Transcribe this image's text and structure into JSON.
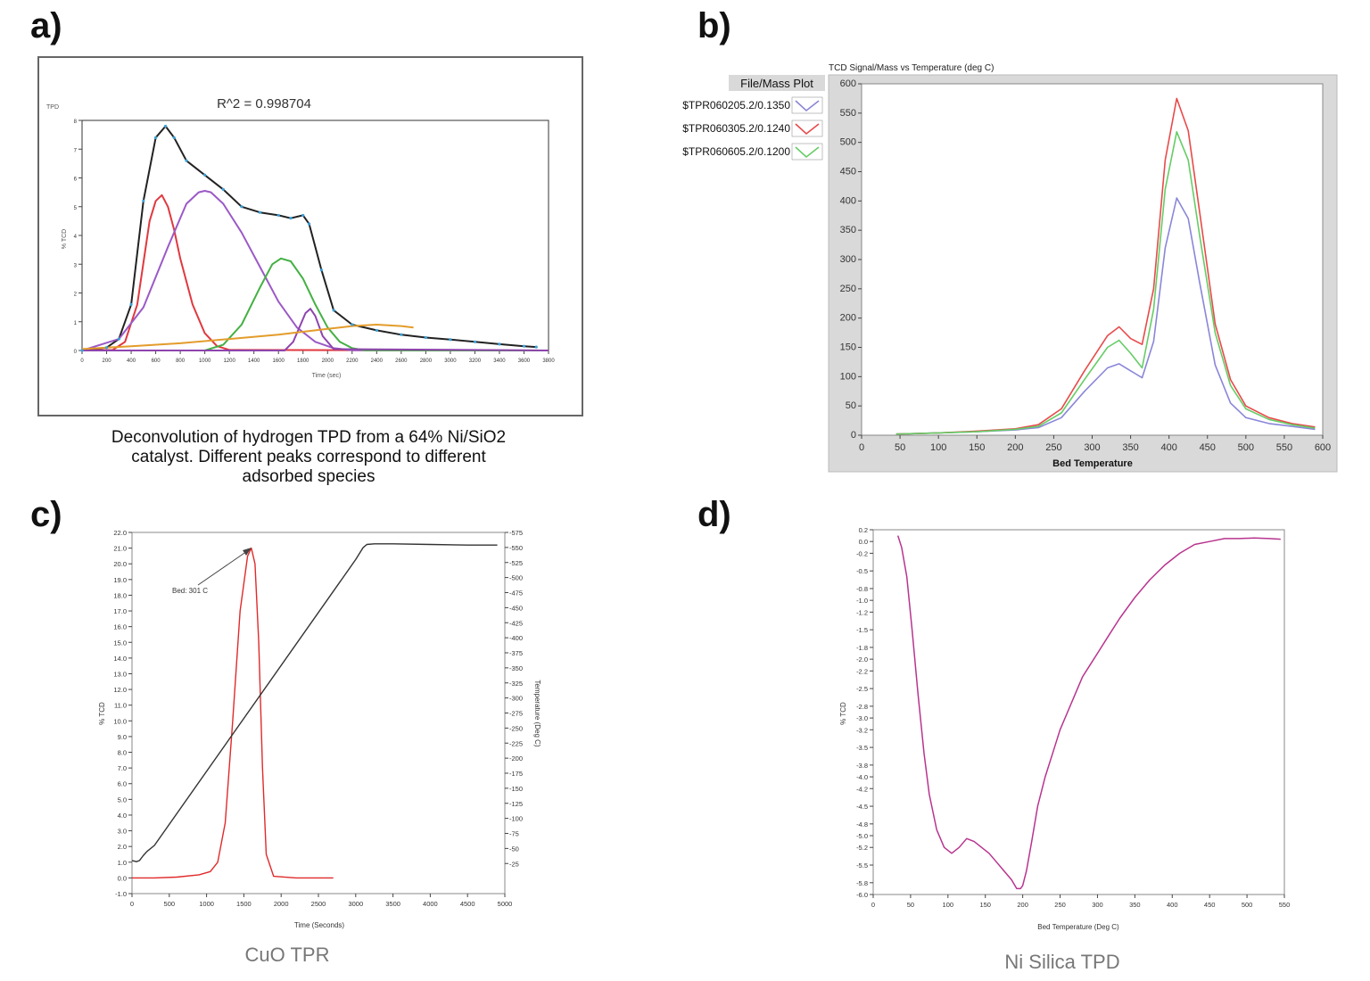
{
  "panels": {
    "a": {
      "label": "a)"
    },
    "b": {
      "label": "b)"
    },
    "c": {
      "label": "c)"
    },
    "d": {
      "label": "d)"
    }
  },
  "colors": {
    "a_fit": "#222222",
    "a_raw": "#3aa0d8",
    "a_red": "#e0383f",
    "a_purple": "#9b59c6",
    "a_green": "#44b044",
    "a_purple2": "#8e44ad",
    "a_orange": "#e39c2b",
    "b_blue": "#8a86d8",
    "b_red": "#e84a4a",
    "b_green": "#66cc66",
    "c_red": "#e02a2a",
    "c_black": "#333333",
    "d_magenta": "#b8348f"
  },
  "chart_data": [
    {
      "panel": "a",
      "type": "line",
      "title": "R^2 = 0.998704",
      "top_left_label": "TPD",
      "xlabel": "Time (sec)",
      "ylabel": "% TCD",
      "caption": [
        "Deconvolution of hydrogen TPD from a 64% Ni/SiO2",
        "catalyst.  Different peaks correspond to different",
        "adsorbed species"
      ],
      "xlim": [
        0,
        3800
      ],
      "ylim": [
        0,
        8
      ],
      "x_ticks": [
        "0",
        "200",
        "400",
        "600",
        "800",
        "1000",
        "1200",
        "1400",
        "1600",
        "1800",
        "2000",
        "2200",
        "2400",
        "2600",
        "2800",
        "3000",
        "3200",
        "3400",
        "3600",
        "3800"
      ],
      "y_ticks": [
        "0",
        "1",
        "2",
        "3",
        "4",
        "5",
        "6",
        "7",
        "8"
      ],
      "series": [
        {
          "color_key": "a_fit",
          "x": [
            0,
            200,
            300,
            400,
            500,
            600,
            680,
            750,
            850,
            1000,
            1150,
            1300,
            1450,
            1600,
            1700,
            1800,
            1850,
            1950,
            2050,
            2200,
            2400,
            2600,
            2800,
            3000,
            3200,
            3400,
            3600,
            3700
          ],
          "y": [
            0.0,
            0.1,
            0.4,
            1.6,
            5.2,
            7.4,
            7.8,
            7.4,
            6.6,
            6.1,
            5.6,
            5.0,
            4.8,
            4.7,
            4.6,
            4.7,
            4.4,
            2.8,
            1.4,
            0.9,
            0.7,
            0.55,
            0.45,
            0.38,
            0.3,
            0.22,
            0.15,
            0.12
          ]
        },
        {
          "color_key": "a_red",
          "x": [
            0,
            250,
            350,
            450,
            550,
            600,
            650,
            700,
            750,
            800,
            900,
            1000,
            1100,
            1200,
            3800
          ],
          "y": [
            0,
            0.02,
            0.3,
            1.6,
            4.5,
            5.2,
            5.4,
            5.0,
            4.2,
            3.2,
            1.6,
            0.6,
            0.15,
            0.02,
            0
          ]
        },
        {
          "color_key": "a_purple",
          "x": [
            0,
            300,
            500,
            700,
            850,
            950,
            1000,
            1050,
            1150,
            1300,
            1450,
            1600,
            1750,
            1900,
            2050,
            2200,
            3800
          ],
          "y": [
            0,
            0.4,
            1.5,
            3.6,
            5.1,
            5.5,
            5.55,
            5.5,
            5.1,
            4.1,
            2.9,
            1.7,
            0.8,
            0.3,
            0.08,
            0.01,
            0
          ]
        },
        {
          "color_key": "a_green",
          "x": [
            0,
            1000,
            1150,
            1300,
            1450,
            1550,
            1620,
            1700,
            1800,
            1900,
            2000,
            2100,
            2200,
            2300,
            3800
          ],
          "y": [
            0,
            0.0,
            0.2,
            0.9,
            2.2,
            3.0,
            3.2,
            3.1,
            2.5,
            1.6,
            0.8,
            0.3,
            0.08,
            0.01,
            0
          ]
        },
        {
          "color_key": "a_purple2",
          "x": [
            0,
            1650,
            1720,
            1780,
            1820,
            1860,
            1900,
            1960,
            2050,
            3800
          ],
          "y": [
            0,
            0,
            0.3,
            0.9,
            1.3,
            1.45,
            1.2,
            0.5,
            0.05,
            0
          ]
        },
        {
          "color_key": "a_orange",
          "x": [
            0,
            400,
            800,
            1200,
            1600,
            2000,
            2200,
            2400,
            2600,
            2700
          ],
          "y": [
            0.05,
            0.15,
            0.25,
            0.4,
            0.55,
            0.75,
            0.85,
            0.9,
            0.85,
            0.8
          ]
        }
      ]
    },
    {
      "panel": "b",
      "type": "line",
      "title": "TCD Signal/Mass vs Temperature  (deg C)",
      "legend_header": "File/Mass  Plot",
      "legend": [
        "$TPR060205.2/0.1350",
        "$TPR060305.2/0.1240",
        "$TPR060605.2/0.1200"
      ],
      "legend_color_keys": [
        "b_blue",
        "b_red",
        "b_green"
      ],
      "xlabel": "Bed Temperature",
      "xlim": [
        0,
        600
      ],
      "ylim": [
        0,
        600
      ],
      "x_ticks": [
        "0",
        "50",
        "100",
        "150",
        "200",
        "250",
        "300",
        "350",
        "400",
        "450",
        "500",
        "550",
        "600"
      ],
      "y_ticks": [
        "0",
        "50",
        "100",
        "150",
        "200",
        "250",
        "300",
        "350",
        "400",
        "450",
        "500",
        "550",
        "600"
      ],
      "series": [
        {
          "color_key": "b_blue",
          "x": [
            45,
            100,
            150,
            200,
            230,
            260,
            290,
            320,
            335,
            350,
            365,
            380,
            395,
            410,
            425,
            440,
            460,
            480,
            500,
            530,
            560,
            590
          ],
          "y": [
            2,
            4,
            6,
            9,
            13,
            30,
            75,
            115,
            122,
            110,
            98,
            160,
            320,
            405,
            370,
            260,
            120,
            55,
            30,
            20,
            15,
            10
          ]
        },
        {
          "color_key": "b_red",
          "x": [
            45,
            100,
            150,
            200,
            230,
            260,
            290,
            320,
            335,
            350,
            365,
            380,
            395,
            410,
            425,
            440,
            460,
            480,
            500,
            530,
            560,
            590
          ],
          "y": [
            2,
            4,
            7,
            11,
            18,
            45,
            110,
            170,
            185,
            165,
            155,
            250,
            470,
            575,
            520,
            380,
            190,
            95,
            50,
            30,
            20,
            14
          ]
        },
        {
          "color_key": "b_green",
          "x": [
            45,
            100,
            150,
            200,
            230,
            260,
            290,
            320,
            335,
            350,
            365,
            380,
            395,
            410,
            425,
            440,
            460,
            480,
            500,
            530,
            560,
            590
          ],
          "y": [
            2,
            4,
            6,
            10,
            15,
            38,
            95,
            150,
            162,
            140,
            115,
            215,
            420,
            518,
            470,
            340,
            175,
            85,
            45,
            27,
            18,
            12
          ]
        }
      ]
    },
    {
      "panel": "c",
      "type": "line",
      "caption": "CuO TPR",
      "xlabel": "Time (Seconds)",
      "ylabel": "% TCD",
      "y2label": "Temperature (Deg C)",
      "annotation": "Bed: 301 C",
      "xlim": [
        0,
        5000
      ],
      "ylim": [
        -1,
        22
      ],
      "y2lim": [
        -25,
        575
      ],
      "x_ticks": [
        "0",
        "500",
        "1000",
        "1500",
        "2000",
        "2500",
        "3000",
        "3500",
        "4000",
        "4500",
        "5000"
      ],
      "y_ticks": [
        "-1.0",
        "0.0",
        "1.0",
        "2.0",
        "3.0",
        "4.0",
        "5.0",
        "6.0",
        "7.0",
        "8.0",
        "9.0",
        "10.0",
        "11.0",
        "12.0",
        "13.0",
        "14.0",
        "15.0",
        "16.0",
        "17.0",
        "18.0",
        "19.0",
        "20.0",
        "21.0",
        "22.0"
      ],
      "y2_ticks": [
        "-25",
        "-50",
        "-75",
        "-100",
        "-125",
        "-150",
        "-175",
        "-200",
        "-225",
        "-250",
        "-275",
        "-300",
        "-325",
        "-350",
        "-375",
        "-400",
        "-425",
        "-450",
        "-475",
        "-500",
        "-525",
        "-550",
        "-575"
      ],
      "series": [
        {
          "color_key": "c_red",
          "axis": "y",
          "x": [
            0,
            100,
            300,
            600,
            900,
            1050,
            1150,
            1250,
            1350,
            1450,
            1550,
            1600,
            1650,
            1700,
            1750,
            1800,
            1900,
            2200,
            2700
          ],
          "y": [
            0,
            0,
            0,
            0.05,
            0.2,
            0.4,
            1.0,
            3.5,
            10,
            17,
            20.5,
            21,
            20,
            15,
            7,
            1.5,
            0.1,
            0,
            0
          ]
        },
        {
          "color_key": "c_black",
          "axis": "y2",
          "x": [
            0,
            60,
            100,
            150,
            200,
            300,
            3000,
            3100,
            3150,
            3250,
            3500,
            4000,
            4500,
            4900
          ],
          "y": [
            30,
            28,
            30,
            38,
            45,
            55,
            530,
            550,
            555,
            556,
            556,
            555,
            554,
            554
          ]
        }
      ]
    },
    {
      "panel": "d",
      "type": "line",
      "caption": "Ni Silica TPD",
      "xlabel": "Bed Temperature (Deg C)",
      "ylabel": "% TCD",
      "xlim": [
        0,
        550
      ],
      "ylim": [
        -6.0,
        0.2
      ],
      "x_ticks": [
        "0",
        "50",
        "100",
        "150",
        "200",
        "250",
        "300",
        "350",
        "400",
        "450",
        "500",
        "550"
      ],
      "y_ticks": [
        "0.2",
        "0.0",
        "-0.2",
        "-0.5",
        "-0.8",
        "-1.0",
        "-1.2",
        "-1.5",
        "-1.8",
        "-2.0",
        "-2.2",
        "-2.5",
        "-2.8",
        "-3.0",
        "-3.2",
        "-3.5",
        "-3.8",
        "-4.0",
        "-4.2",
        "-4.5",
        "-4.8",
        "-5.0",
        "-5.2",
        "-5.5",
        "-5.8",
        "-6.0"
      ],
      "series": [
        {
          "color_key": "d_magenta",
          "x": [
            33,
            38,
            45,
            52,
            60,
            68,
            75,
            85,
            95,
            105,
            115,
            125,
            135,
            145,
            155,
            165,
            175,
            185,
            192,
            197,
            200,
            205,
            212,
            220,
            230,
            240,
            250,
            260,
            270,
            280,
            290,
            300,
            315,
            330,
            350,
            370,
            390,
            410,
            430,
            450,
            470,
            490,
            510,
            530,
            545
          ],
          "y": [
            0.1,
            -0.1,
            -0.6,
            -1.5,
            -2.6,
            -3.6,
            -4.3,
            -4.9,
            -5.2,
            -5.3,
            -5.2,
            -5.05,
            -5.1,
            -5.2,
            -5.3,
            -5.45,
            -5.6,
            -5.75,
            -5.9,
            -5.9,
            -5.85,
            -5.6,
            -5.1,
            -4.5,
            -4.0,
            -3.6,
            -3.2,
            -2.9,
            -2.6,
            -2.3,
            -2.1,
            -1.9,
            -1.6,
            -1.3,
            -0.95,
            -0.65,
            -0.4,
            -0.2,
            -0.05,
            0.0,
            0.05,
            0.05,
            0.06,
            0.05,
            0.04
          ]
        }
      ]
    }
  ]
}
